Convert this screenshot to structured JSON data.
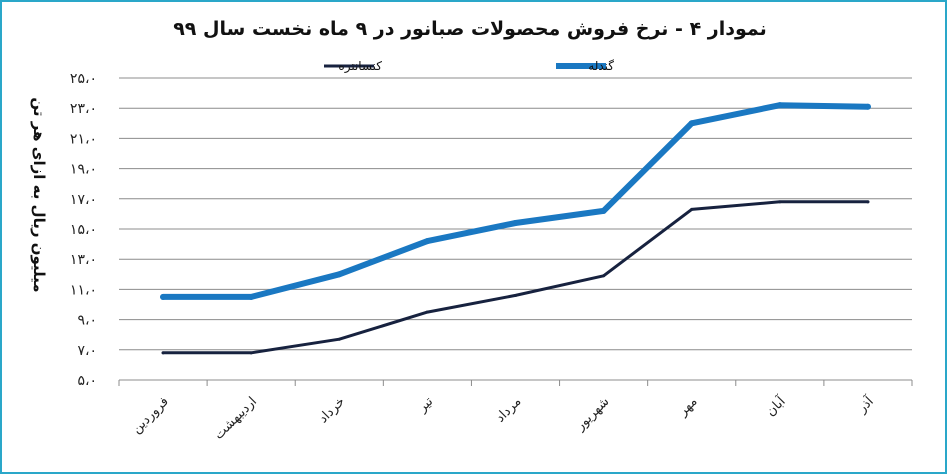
{
  "chart_data": {
    "type": "line",
    "title": "نمودار ۴ - نرخ فروش محصولات صبانور در ۹ ماه نخست سال ۹۹",
    "ylabel": "میلیون ریال به ازای هر تن",
    "xlabel": "",
    "ylim": [
      5,
      25
    ],
    "yticks": [
      5,
      7,
      9,
      11,
      13,
      15,
      17,
      19,
      21,
      23,
      25
    ],
    "ytick_labels": [
      "۵،۰",
      "۷،۰",
      "۹،۰",
      "۱۱،۰",
      "۱۳،۰",
      "۱۵،۰",
      "۱۷،۰",
      "۱۹،۰",
      "۲۱،۰",
      "۲۳،۰",
      "۲۵،۰"
    ],
    "categories": [
      "فروردین",
      "اردیبهشت",
      "خرداد",
      "تیر",
      "مرداد",
      "شهریور",
      "مهر",
      "آبان",
      "آذر"
    ],
    "grid": true,
    "legend_position": "top",
    "series": [
      {
        "name": "کنسانتره",
        "color": "#17223f",
        "values": [
          6.8,
          6.8,
          7.7,
          9.5,
          10.6,
          11.9,
          16.3,
          16.8,
          16.8
        ]
      },
      {
        "name": "گندله",
        "color": "#1a78c2",
        "values": [
          10.5,
          10.5,
          12.0,
          14.2,
          15.4,
          16.2,
          22.0,
          23.2,
          23.1
        ]
      }
    ]
  }
}
